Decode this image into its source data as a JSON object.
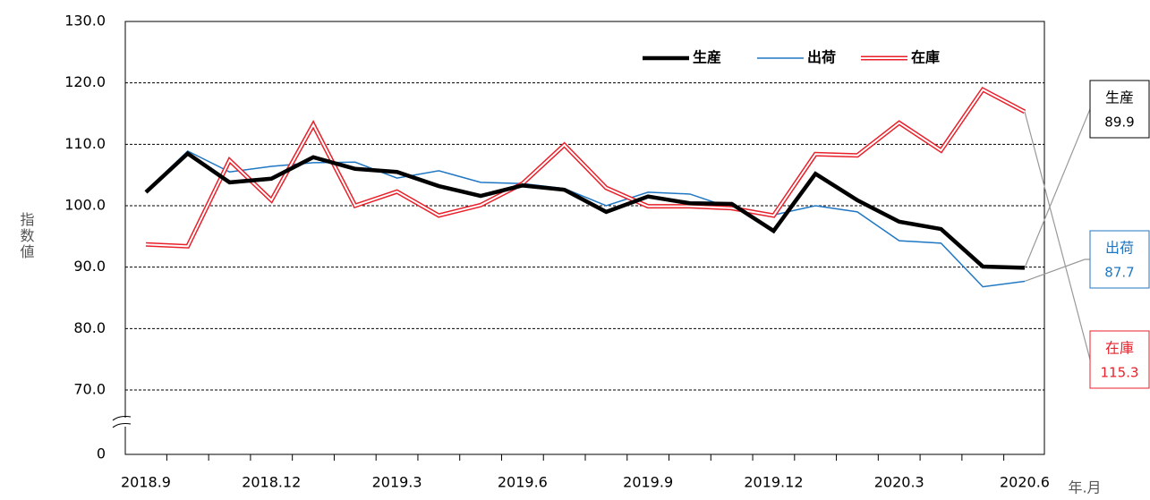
{
  "chart_data": {
    "type": "line",
    "y_label": "指数値",
    "x_label": "年.月",
    "categories": [
      "2018.9",
      null,
      null,
      "2018.12",
      null,
      null,
      "2019.3",
      null,
      null,
      "2019.6",
      null,
      null,
      "2019.9",
      null,
      null,
      "2019.12",
      null,
      null,
      "2020.3",
      null,
      null,
      "2020.6"
    ],
    "series": [
      {
        "name": "生産",
        "color": "#000000",
        "values": [
          102.2,
          108.5,
          103.8,
          104.4,
          107.9,
          106.0,
          105.5,
          103.2,
          101.6,
          103.3,
          102.6,
          99.0,
          101.5,
          100.4,
          100.3,
          95.9,
          105.2,
          100.9,
          97.4,
          96.2,
          90.1,
          89.9
        ]
      },
      {
        "name": "出荷",
        "color": "#1f77c4",
        "values": [
          102.4,
          108.9,
          105.5,
          106.4,
          107.0,
          107.1,
          104.5,
          105.7,
          103.8,
          103.6,
          102.8,
          100.0,
          102.2,
          101.9,
          99.6,
          98.5,
          100.0,
          99.0,
          94.3,
          93.9,
          86.8,
          87.7
        ]
      },
      {
        "name": "在庫",
        "color": "#e8202a",
        "values": [
          93.7,
          93.4,
          107.4,
          100.9,
          113.2,
          100.0,
          102.3,
          98.4,
          100.1,
          103.6,
          109.9,
          102.9,
          99.9,
          99.9,
          99.6,
          98.4,
          108.4,
          108.2,
          113.5,
          109.0,
          118.9,
          115.3
        ]
      }
    ],
    "ylim": [
      0,
      130
    ],
    "axis_break": [
      0,
      70
    ],
    "yticks": [
      0,
      {
        "value": 70,
        "label": "70.0"
      },
      {
        "value": 80,
        "label": "80.0"
      },
      {
        "value": 90,
        "label": "90.0"
      },
      {
        "value": 100,
        "label": "100.0"
      },
      {
        "value": 110,
        "label": "110.0"
      },
      {
        "value": 120,
        "label": "120.0"
      },
      {
        "value": 130,
        "label": "130.0"
      }
    ],
    "grid": true,
    "legend": "top-right"
  }
}
